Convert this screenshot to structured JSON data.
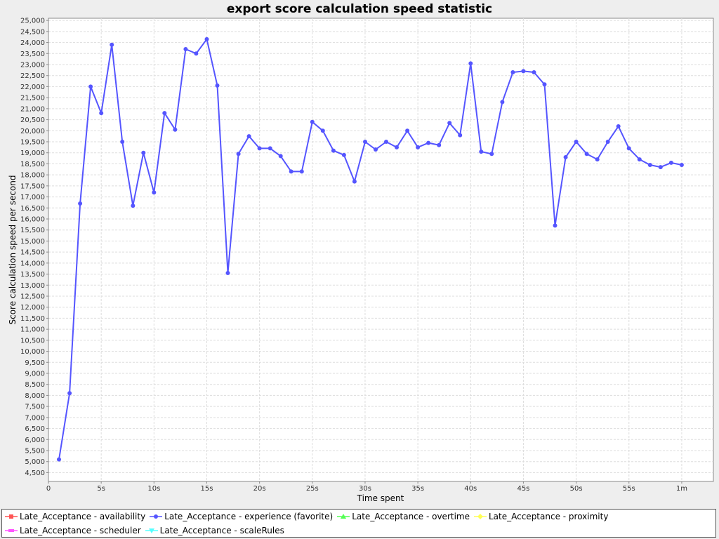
{
  "chart_data": {
    "type": "line",
    "title": "export score calculation speed statistic",
    "xlabel": "Time spent",
    "ylabel": "Score calculation speed per second",
    "xlim": [
      0,
      63
    ],
    "ylim": [
      4100,
      25100
    ],
    "x_ticks": [
      {
        "value": 0,
        "label": "0"
      },
      {
        "value": 5,
        "label": "5s"
      },
      {
        "value": 10,
        "label": "10s"
      },
      {
        "value": 15,
        "label": "15s"
      },
      {
        "value": 20,
        "label": "20s"
      },
      {
        "value": 25,
        "label": "25s"
      },
      {
        "value": 30,
        "label": "30s"
      },
      {
        "value": 35,
        "label": "35s"
      },
      {
        "value": 40,
        "label": "40s"
      },
      {
        "value": 45,
        "label": "45s"
      },
      {
        "value": 50,
        "label": "50s"
      },
      {
        "value": 55,
        "label": "55s"
      },
      {
        "value": 60,
        "label": "1m"
      }
    ],
    "y_ticks": [
      {
        "value": 4500,
        "label": "4,500"
      },
      {
        "value": 5000,
        "label": "5,000"
      },
      {
        "value": 5500,
        "label": "5,500"
      },
      {
        "value": 6000,
        "label": "6,000"
      },
      {
        "value": 6500,
        "label": "6,500"
      },
      {
        "value": 7000,
        "label": "7,000"
      },
      {
        "value": 7500,
        "label": "7,500"
      },
      {
        "value": 8000,
        "label": "8,000"
      },
      {
        "value": 8500,
        "label": "8,500"
      },
      {
        "value": 9000,
        "label": "9,000"
      },
      {
        "value": 9500,
        "label": "9,500"
      },
      {
        "value": 10000,
        "label": "10,000"
      },
      {
        "value": 10500,
        "label": "10,500"
      },
      {
        "value": 11000,
        "label": "11,000"
      },
      {
        "value": 11500,
        "label": "11,500"
      },
      {
        "value": 12000,
        "label": "12,000"
      },
      {
        "value": 12500,
        "label": "12,500"
      },
      {
        "value": 13000,
        "label": "13,000"
      },
      {
        "value": 13500,
        "label": "13,500"
      },
      {
        "value": 14000,
        "label": "14,000"
      },
      {
        "value": 14500,
        "label": "14,500"
      },
      {
        "value": 15000,
        "label": "15,000"
      },
      {
        "value": 15500,
        "label": "15,500"
      },
      {
        "value": 16000,
        "label": "16,000"
      },
      {
        "value": 16500,
        "label": "16,500"
      },
      {
        "value": 17000,
        "label": "17,000"
      },
      {
        "value": 17500,
        "label": "17,500"
      },
      {
        "value": 18000,
        "label": "18,000"
      },
      {
        "value": 18500,
        "label": "18,500"
      },
      {
        "value": 19000,
        "label": "19,000"
      },
      {
        "value": 19500,
        "label": "19,500"
      },
      {
        "value": 20000,
        "label": "20,000"
      },
      {
        "value": 20500,
        "label": "20,500"
      },
      {
        "value": 21000,
        "label": "21,000"
      },
      {
        "value": 21500,
        "label": "21,500"
      },
      {
        "value": 22000,
        "label": "22,000"
      },
      {
        "value": 22500,
        "label": "22,500"
      },
      {
        "value": 23000,
        "label": "23,000"
      },
      {
        "value": 23500,
        "label": "23,500"
      },
      {
        "value": 24000,
        "label": "24,000"
      },
      {
        "value": 24500,
        "label": "24,500"
      },
      {
        "value": 25000,
        "label": "25,000"
      }
    ],
    "grid": true,
    "legend_position": "bottom",
    "series": [
      {
        "name": "Late_Acceptance - availability",
        "color": "#ff5555",
        "marker": "square",
        "x": [],
        "y": []
      },
      {
        "name": "Late_Acceptance - experience (favorite)",
        "color": "#5555ff",
        "marker": "circle",
        "x": [
          1,
          2,
          3,
          4,
          5,
          6,
          7,
          8,
          9,
          10,
          11,
          12,
          13,
          14,
          15,
          16,
          17,
          18,
          19,
          20,
          21,
          22,
          23,
          24,
          25,
          26,
          27,
          28,
          29,
          30,
          31,
          32,
          33,
          34,
          35,
          36,
          37,
          38,
          39,
          40,
          41,
          42,
          43,
          44,
          45,
          46,
          47,
          48,
          49,
          50,
          51,
          52,
          53,
          54,
          55,
          56,
          57,
          58,
          59,
          60
        ],
        "y": [
          5100,
          8100,
          16700,
          22000,
          20800,
          23900,
          19500,
          16600,
          19000,
          17200,
          20800,
          20050,
          23700,
          23500,
          24150,
          22050,
          13550,
          18950,
          19750,
          19200,
          19200,
          18850,
          18150,
          18150,
          20400,
          20000,
          19100,
          18900,
          17700,
          19500,
          19150,
          19500,
          19250,
          20000,
          19250,
          19450,
          19350,
          20350,
          19800,
          23050,
          19050,
          18950,
          21300,
          22650,
          22700,
          22650,
          22100,
          15700,
          18800,
          19500,
          18950,
          18700,
          19500,
          20200,
          19200,
          18700,
          18450,
          18350,
          18550,
          18450
        ]
      },
      {
        "name": "Late_Acceptance - overtime",
        "color": "#55ff55",
        "marker": "triangle-up",
        "x": [],
        "y": []
      },
      {
        "name": "Late_Acceptance - proximity",
        "color": "#ffff55",
        "marker": "diamond",
        "x": [],
        "y": []
      },
      {
        "name": "Late_Acceptance - scheduler",
        "color": "#ff55ff",
        "marker": "rect-h",
        "x": [],
        "y": []
      },
      {
        "name": "Late_Acceptance - scaleRules",
        "color": "#55ffff",
        "marker": "triangle-down",
        "x": [],
        "y": []
      }
    ]
  }
}
